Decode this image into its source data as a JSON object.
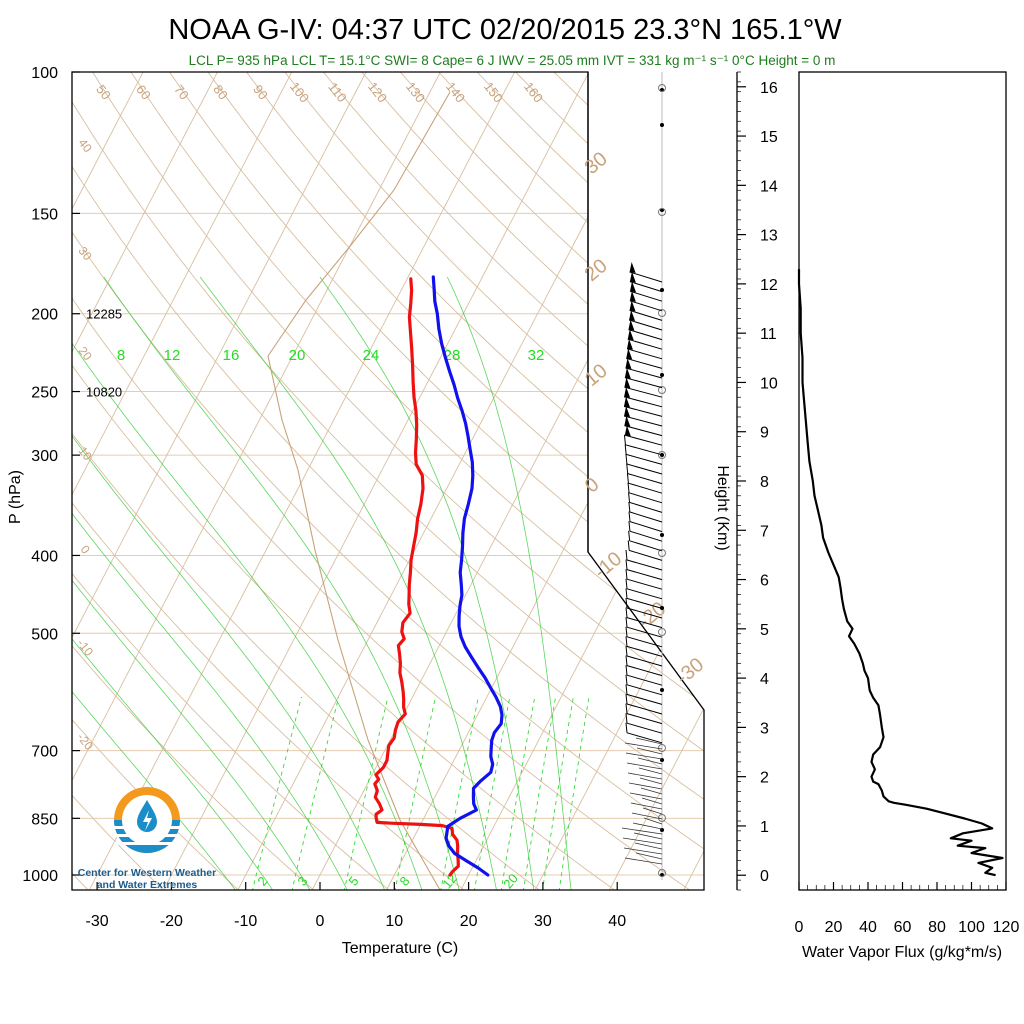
{
  "title": "NOAA G-IV: 04:37 UTC 02/20/2015  23.3°N 165.1°W",
  "subtitle": "LCL P= 935 hPa  LCL T= 15.1°C  SWI= 8  Cape= 6 J  IWV = 25.05 mm  IVT = 331 kg m⁻¹ s⁻¹  0°C Height = 0 m",
  "logo": {
    "line1": "Center for Western Weather",
    "line2": "and Water Extremes"
  },
  "colors": {
    "temperature": "#ee1111",
    "dewpoint": "#1111ee",
    "dry_adiabat": "#d8bfa0",
    "isotherm": "#d8bfa0",
    "mixing_ratio": "#33dd33",
    "moist_adiabat": "#33cc33",
    "logo_orange": "#f39a1e",
    "logo_blue": "#1b8ec9"
  },
  "chart_data": [
    {
      "type": "line",
      "subtype": "skew-T log-P",
      "xlabel": "Temperature (C)",
      "ylabel": "P (hPa)",
      "xlim": [
        -35,
        50
      ],
      "ylim": [
        1050,
        100
      ],
      "x_ticks": [
        "-30",
        "-20",
        "-10",
        "0",
        "10",
        "20",
        "30",
        "40"
      ],
      "y_ticks": [
        "100",
        "150",
        "200",
        "250",
        "300",
        "400",
        "500",
        "700",
        "850",
        "1000"
      ],
      "height_annotations": [
        {
          "pressure": 200,
          "label": "12285"
        },
        {
          "pressure": 250,
          "label": "10820"
        }
      ],
      "dry_adiabat_labels": [
        "50",
        "60",
        "70",
        "80",
        "90",
        "100",
        "110",
        "120",
        "130",
        "140",
        "150",
        "160",
        "40",
        "30",
        "20",
        "10",
        "0",
        "-10",
        "-20"
      ],
      "moist_adiabat_labels": [
        "30",
        "20",
        "10",
        "0",
        "-10",
        "-20",
        "-30"
      ],
      "mixing_ratio_labels_upper": [
        "8",
        "12",
        "16",
        "20",
        "24",
        "28",
        "32"
      ],
      "mixing_ratio_labels_lower": [
        "2",
        "3",
        "5",
        "8",
        "12",
        "20"
      ],
      "series": [
        {
          "name": "Temperature",
          "points": [
            [
              17.5,
              1000
            ],
            [
              17.6,
              990
            ],
            [
              18.0,
              975
            ],
            [
              17.6,
              960
            ],
            [
              17.0,
              940
            ],
            [
              16.5,
              920
            ],
            [
              16.0,
              905
            ],
            [
              15.0,
              890
            ],
            [
              14.5,
              875
            ],
            [
              13.0,
              868
            ],
            [
              10.0,
              865
            ],
            [
              6.0,
              862
            ],
            [
              4.0,
              860
            ],
            [
              3.6,
              850
            ],
            [
              3.3,
              840
            ],
            [
              3.8,
              830
            ],
            [
              3.0,
              815
            ],
            [
              2.0,
              800
            ],
            [
              1.8,
              785
            ],
            [
              1.0,
              770
            ],
            [
              1.2,
              760
            ],
            [
              0.5,
              750
            ],
            [
              1.0,
              735
            ],
            [
              1.0,
              720
            ],
            [
              0.6,
              705
            ],
            [
              0.2,
              690
            ],
            [
              0.4,
              675
            ],
            [
              0.0,
              660
            ],
            [
              -0.2,
              645
            ],
            [
              0.2,
              630
            ],
            [
              -0.5,
              618
            ],
            [
              -1.0,
              605
            ],
            [
              -1.6,
              592
            ],
            [
              -2.5,
              575
            ],
            [
              -3.4,
              560
            ],
            [
              -4.0,
              545
            ],
            [
              -4.8,
              530
            ],
            [
              -5.5,
              518
            ],
            [
              -5.2,
              508
            ],
            [
              -6.0,
              498
            ],
            [
              -6.5,
              485
            ],
            [
              -6.2,
              472
            ],
            [
              -7.0,
              460
            ],
            [
              -7.6,
              448
            ],
            [
              -8.3,
              435
            ],
            [
              -9.0,
              420
            ],
            [
              -9.8,
              405
            ],
            [
              -10.4,
              390
            ],
            [
              -11.0,
              375
            ],
            [
              -11.8,
              360
            ],
            [
              -12.4,
              345
            ],
            [
              -13.2,
              330
            ],
            [
              -14.2,
              318
            ],
            [
              -15.8,
              308
            ],
            [
              -16.7,
              298
            ],
            [
              -17.5,
              287
            ],
            [
              -18.5,
              275
            ],
            [
              -19.6,
              264
            ],
            [
              -20.8,
              254
            ],
            [
              -22.0,
              243
            ],
            [
              -23.2,
              232
            ],
            [
              -24.5,
              221
            ],
            [
              -25.8,
              211
            ],
            [
              -27.0,
              202
            ],
            [
              -27.8,
              194
            ],
            [
              -28.6,
              187
            ],
            [
              -29.5,
              181
            ]
          ]
        },
        {
          "name": "Dew point",
          "points": [
            [
              22.6,
              1000
            ],
            [
              20.8,
              980
            ],
            [
              18.7,
              960
            ],
            [
              16.6,
              940
            ],
            [
              15.3,
              920
            ],
            [
              14.4,
              900
            ],
            [
              13.8,
              870
            ],
            [
              14.9,
              850
            ],
            [
              16.5,
              830
            ],
            [
              15.7,
              815
            ],
            [
              15.2,
              800
            ],
            [
              14.6,
              780
            ],
            [
              15.0,
              765
            ],
            [
              15.8,
              745
            ],
            [
              15.5,
              728
            ],
            [
              14.7,
              712
            ],
            [
              14.2,
              696
            ],
            [
              13.7,
              680
            ],
            [
              13.5,
              665
            ],
            [
              13.8,
              648
            ],
            [
              13.3,
              632
            ],
            [
              12.5,
              617
            ],
            [
              11.2,
              600
            ],
            [
              9.8,
              584
            ],
            [
              8.4,
              568
            ],
            [
              6.8,
              552
            ],
            [
              5.2,
              536
            ],
            [
              3.6,
              520
            ],
            [
              2.3,
              505
            ],
            [
              1.3,
              490
            ],
            [
              0.6,
              476
            ],
            [
              0.0,
              462
            ],
            [
              -0.5,
              448
            ],
            [
              -1.3,
              435
            ],
            [
              -2.3,
              420
            ],
            [
              -3.0,
              405
            ],
            [
              -3.8,
              390
            ],
            [
              -4.7,
              375
            ],
            [
              -5.5,
              360
            ],
            [
              -6.0,
              345
            ],
            [
              -6.6,
              330
            ],
            [
              -7.4,
              318
            ],
            [
              -8.4,
              306
            ],
            [
              -9.6,
              295
            ],
            [
              -10.8,
              284
            ],
            [
              -12.0,
              274
            ],
            [
              -13.4,
              264
            ],
            [
              -14.8,
              255
            ],
            [
              -16.3,
              245
            ],
            [
              -17.8,
              236
            ],
            [
              -19.3,
              227
            ],
            [
              -20.8,
              218
            ],
            [
              -22.2,
              209
            ],
            [
              -23.5,
              200
            ],
            [
              -24.7,
              193
            ],
            [
              -25.7,
              186
            ],
            [
              -26.6,
              180
            ]
          ]
        }
      ]
    },
    {
      "type": "line",
      "xlabel": "Water Vapor Flux (g/kg*m/s)",
      "ylabel": "Height (Km)",
      "xlim": [
        0,
        120
      ],
      "ylim": [
        -0.3,
        16.3
      ],
      "x_ticks": [
        "0",
        "20",
        "40",
        "60",
        "80",
        "100",
        "120"
      ],
      "y_ticks": [
        "0",
        "1",
        "2",
        "3",
        "4",
        "5",
        "6",
        "7",
        "8",
        "9",
        "10",
        "11",
        "12",
        "13",
        "14",
        "15",
        "16"
      ],
      "series": [
        {
          "name": "Water Vapor Flux",
          "points": [
            [
              114,
              0.0
            ],
            [
              108,
              0.05
            ],
            [
              112,
              0.15
            ],
            [
              104,
              0.25
            ],
            [
              118,
              0.35
            ],
            [
              100,
              0.45
            ],
            [
              108,
              0.55
            ],
            [
              92,
              0.6
            ],
            [
              100,
              0.7
            ],
            [
              88,
              0.75
            ],
            [
              95,
              0.85
            ],
            [
              112,
              0.95
            ],
            [
              106,
              1.05
            ],
            [
              96,
              1.15
            ],
            [
              85,
              1.25
            ],
            [
              74,
              1.35
            ],
            [
              62,
              1.43
            ],
            [
              55,
              1.47
            ],
            [
              52,
              1.5
            ],
            [
              49,
              1.6
            ],
            [
              48,
              1.72
            ],
            [
              46,
              1.85
            ],
            [
              43,
              1.9
            ],
            [
              42,
              2.0
            ],
            [
              44,
              2.15
            ],
            [
              42,
              2.3
            ],
            [
              43,
              2.45
            ],
            [
              47,
              2.6
            ],
            [
              49,
              2.8
            ],
            [
              48,
              3.0
            ],
            [
              47,
              3.25
            ],
            [
              46,
              3.45
            ],
            [
              43,
              3.6
            ],
            [
              41,
              3.75
            ],
            [
              40,
              4.0
            ],
            [
              38,
              4.15
            ],
            [
              37,
              4.3
            ],
            [
              35,
              4.5
            ],
            [
              32,
              4.7
            ],
            [
              29,
              4.85
            ],
            [
              31,
              5.0
            ],
            [
              28,
              5.15
            ],
            [
              26,
              5.4
            ],
            [
              25,
              5.6
            ],
            [
              24,
              5.85
            ],
            [
              23,
              6.05
            ],
            [
              20,
              6.3
            ],
            [
              17,
              6.55
            ],
            [
              14,
              6.85
            ],
            [
              13,
              7.1
            ],
            [
              11,
              7.4
            ],
            [
              9,
              7.7
            ],
            [
              8,
              8.0
            ],
            [
              6,
              8.4
            ],
            [
              5,
              8.8
            ],
            [
              4,
              9.2
            ],
            [
              3,
              9.6
            ],
            [
              2,
              10.0
            ],
            [
              2,
              10.5
            ],
            [
              1,
              11.0
            ],
            [
              1,
              11.5
            ],
            [
              0,
              12.0
            ],
            [
              0,
              12.3
            ]
          ]
        }
      ]
    }
  ]
}
